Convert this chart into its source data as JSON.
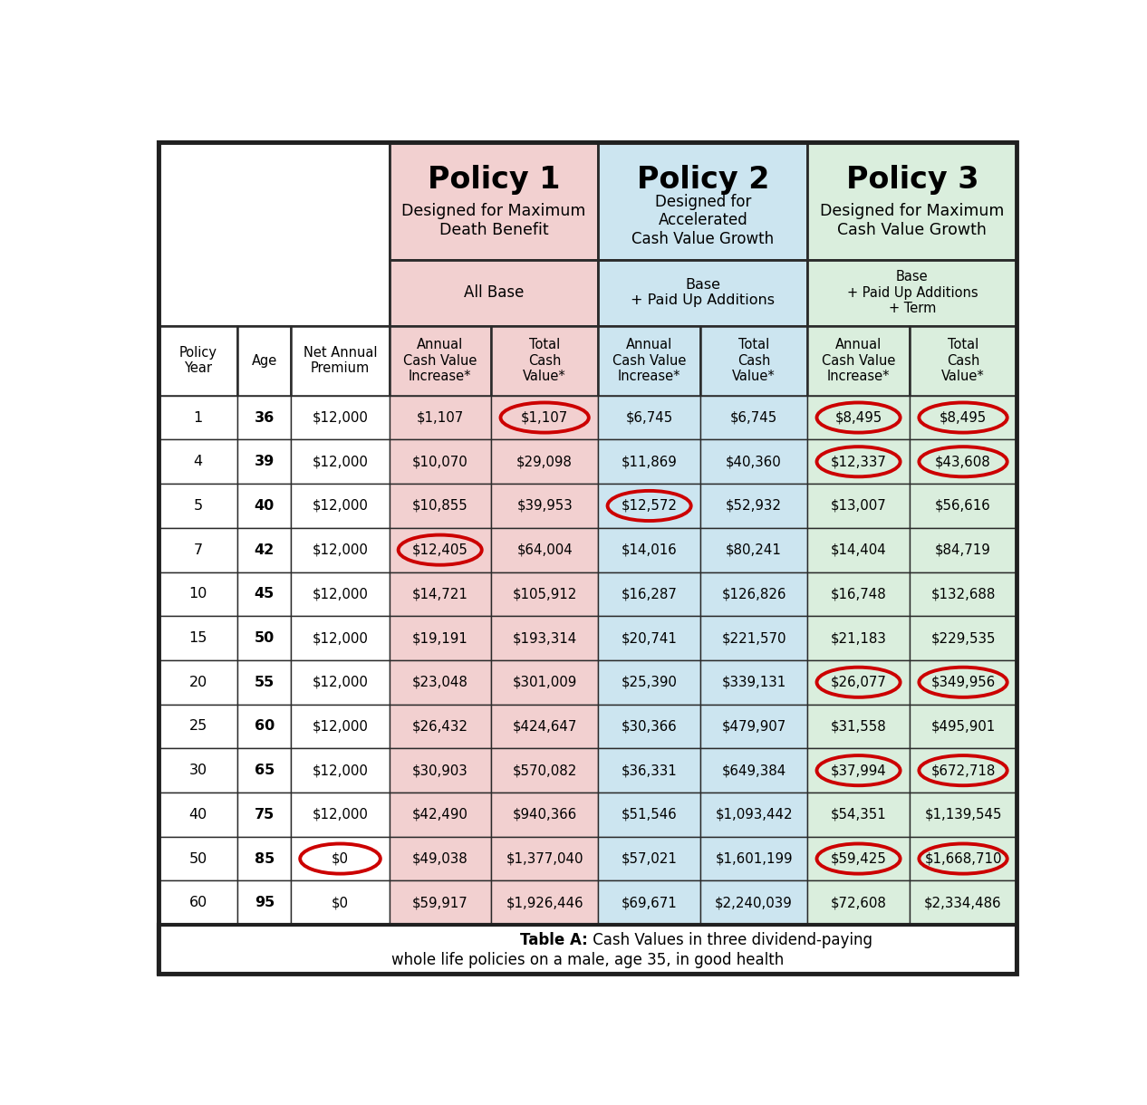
{
  "policy1_header": "Policy 1",
  "policy1_sub": "Designed for Maximum\nDeath Benefit",
  "policy1_sub2": "All Base",
  "policy2_header": "Policy 2",
  "policy2_sub": "Designed for\nAccelerated\nCash Value Growth",
  "policy2_sub2": "Base\n+ Paid Up Additions",
  "policy3_header": "Policy 3",
  "policy3_sub": "Designed for Maximum\nCash Value Growth",
  "policy3_sub2": "Base\n+ Paid Up Additions\n+ Term",
  "col_headers": [
    "Policy\nYear",
    "Age",
    "Net Annual\nPremium",
    "Annual\nCash Value\nIncrease*",
    "Total\nCash\nValue*",
    "Annual\nCash Value\nIncrease*",
    "Total\nCash\nValue*",
    "Annual\nCash Value\nIncrease*",
    "Total\nCash\nValue*"
  ],
  "rows": [
    [
      "1",
      "36",
      "$12,000",
      "$1,107",
      "$1,107",
      "$6,745",
      "$6,745",
      "$8,495",
      "$8,495"
    ],
    [
      "4",
      "39",
      "$12,000",
      "$10,070",
      "$29,098",
      "$11,869",
      "$40,360",
      "$12,337",
      "$43,608"
    ],
    [
      "5",
      "40",
      "$12,000",
      "$10,855",
      "$39,953",
      "$12,572",
      "$52,932",
      "$13,007",
      "$56,616"
    ],
    [
      "7",
      "42",
      "$12,000",
      "$12,405",
      "$64,004",
      "$14,016",
      "$80,241",
      "$14,404",
      "$84,719"
    ],
    [
      "10",
      "45",
      "$12,000",
      "$14,721",
      "$105,912",
      "$16,287",
      "$126,826",
      "$16,748",
      "$132,688"
    ],
    [
      "15",
      "50",
      "$12,000",
      "$19,191",
      "$193,314",
      "$20,741",
      "$221,570",
      "$21,183",
      "$229,535"
    ],
    [
      "20",
      "55",
      "$12,000",
      "$23,048",
      "$301,009",
      "$25,390",
      "$339,131",
      "$26,077",
      "$349,956"
    ],
    [
      "25",
      "60",
      "$12,000",
      "$26,432",
      "$424,647",
      "$30,366",
      "$479,907",
      "$31,558",
      "$495,901"
    ],
    [
      "30",
      "65",
      "$12,000",
      "$30,903",
      "$570,082",
      "$36,331",
      "$649,384",
      "$37,994",
      "$672,718"
    ],
    [
      "40",
      "75",
      "$12,000",
      "$42,490",
      "$940,366",
      "$51,546",
      "$1,093,442",
      "$54,351",
      "$1,139,545"
    ],
    [
      "50",
      "85",
      "$0",
      "$49,038",
      "$1,377,040",
      "$57,021",
      "$1,601,199",
      "$59,425",
      "$1,668,710"
    ],
    [
      "60",
      "95",
      "$0",
      "$59,917",
      "$1,926,446",
      "$69,671",
      "$2,240,039",
      "$72,608",
      "$2,334,486"
    ]
  ],
  "color_policy1": "#f2d0d0",
  "color_policy2": "#cce5f0",
  "color_policy3": "#daeedd",
  "color_border": "#2a2a2a",
  "color_circle": "#cc0000",
  "footnote_bold": "Table A:",
  "footnote_line1": " Cash Values in three dividend-paying",
  "footnote_line2": "whole life policies on a male, age 35, in good health",
  "circles": [
    {
      "row": 0,
      "col": 4
    },
    {
      "row": 0,
      "col": 7
    },
    {
      "row": 0,
      "col": 8
    },
    {
      "row": 1,
      "col": 7
    },
    {
      "row": 1,
      "col": 8
    },
    {
      "row": 2,
      "col": 5
    },
    {
      "row": 3,
      "col": 3
    },
    {
      "row": 6,
      "col": 7
    },
    {
      "row": 6,
      "col": 8
    },
    {
      "row": 8,
      "col": 7
    },
    {
      "row": 8,
      "col": 8
    },
    {
      "row": 10,
      "col": 2
    },
    {
      "row": 10,
      "col": 7
    },
    {
      "row": 10,
      "col": 8
    }
  ]
}
